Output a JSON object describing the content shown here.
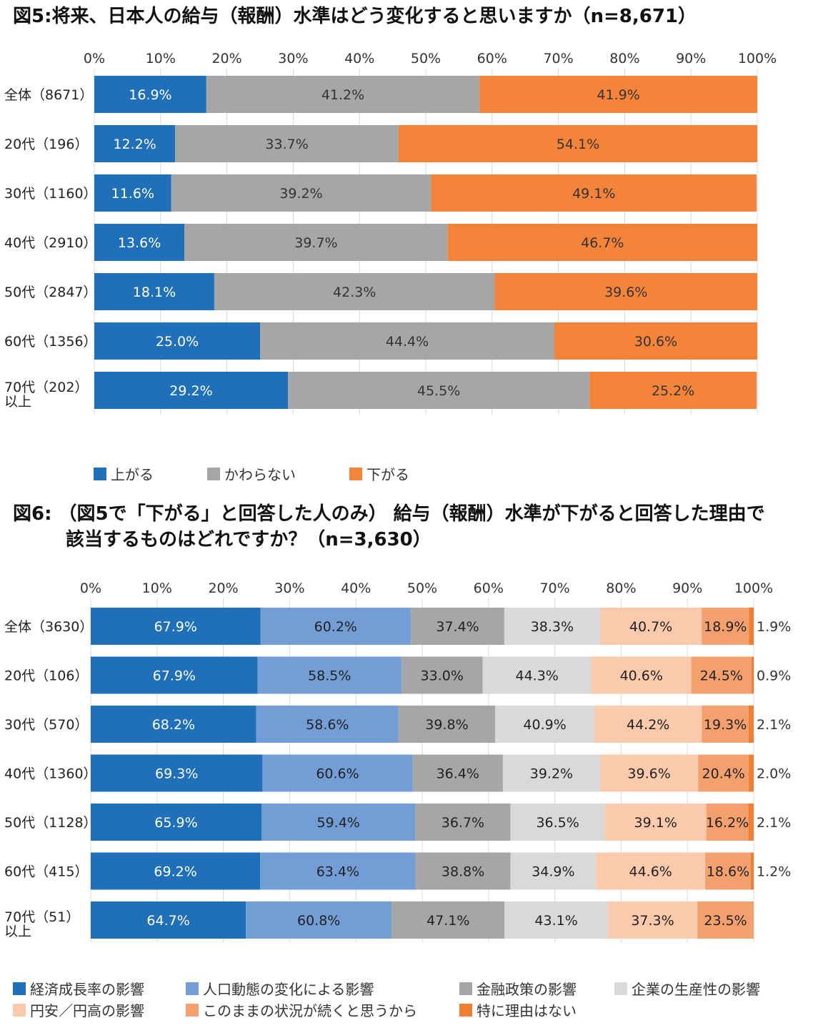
{
  "chart_data": [
    {
      "type": "bar",
      "orientation": "horizontal",
      "stacked": true,
      "title": "図5:将来、日本人の給与（報酬）水準はどう変化すると思いますか（n=8,671）",
      "xlim": [
        0,
        100
      ],
      "x_ticks": [
        "0%",
        "10%",
        "20%",
        "30%",
        "40%",
        "50%",
        "60%",
        "70%",
        "80%",
        "90%",
        "100%"
      ],
      "categories": [
        [
          "全体（8671）"
        ],
        [
          "20代（196）"
        ],
        [
          "30代（1160）"
        ],
        [
          "40代（2910）"
        ],
        [
          "50代（2847）"
        ],
        [
          "60代（1356）"
        ],
        [
          "70代（202）",
          "以上"
        ]
      ],
      "series": [
        {
          "name": "上がる",
          "color": "#1f6fb9",
          "label_color": "#ffffff",
          "values": [
            16.9,
            12.2,
            11.6,
            13.6,
            18.1,
            25.0,
            29.2
          ],
          "labels": [
            "16.9%",
            "12.2%",
            "11.6%",
            "13.6%",
            "18.1%",
            "25.0%",
            "29.2%"
          ]
        },
        {
          "name": "かわらない",
          "color": "#a6a6a6",
          "label_color": "#333333",
          "values": [
            41.2,
            33.7,
            39.2,
            39.7,
            42.3,
            44.4,
            45.5
          ],
          "labels": [
            "41.2%",
            "33.7%",
            "39.2%",
            "39.7%",
            "42.3%",
            "44.4%",
            "45.5%"
          ]
        },
        {
          "name": "下がる",
          "color": "#f5843b",
          "label_color": "#333333",
          "values": [
            41.9,
            54.1,
            49.1,
            46.7,
            39.6,
            30.6,
            25.2
          ],
          "labels": [
            "41.9%",
            "54.1%",
            "49.1%",
            "46.7%",
            "39.6%",
            "30.6%",
            "25.2%"
          ]
        }
      ]
    },
    {
      "type": "bar",
      "orientation": "horizontal",
      "stacked": true,
      "normalized": true,
      "title_lines": [
        "図6: （図5で「下がる」と回答した人のみ） 給与（報酬）水準が下がると回答した理由で",
        "該当するものはどれですか？（n=3,630）"
      ],
      "xlim": [
        0,
        100
      ],
      "x_ticks": [
        "0%",
        "10%",
        "20%",
        "30%",
        "40%",
        "50%",
        "60%",
        "70%",
        "80%",
        "90%",
        "100%"
      ],
      "categories": [
        [
          "全体（3630）"
        ],
        [
          "20代（106）"
        ],
        [
          "30代（570）"
        ],
        [
          "40代（1360）"
        ],
        [
          "50代（1128）"
        ],
        [
          "60代（415）"
        ],
        [
          "70代（51）",
          "以上"
        ]
      ],
      "series": [
        {
          "name": "経済成長率の影響",
          "color": "#1f6fb9",
          "label_color": "#ffffff",
          "values": [
            67.9,
            67.9,
            68.2,
            69.3,
            65.9,
            69.2,
            64.7
          ],
          "labels": [
            "67.9%",
            "67.9%",
            "68.2%",
            "69.3%",
            "65.9%",
            "69.2%",
            "64.7%"
          ]
        },
        {
          "name": "人口動態の変化による影響",
          "color": "#739dd5",
          "label_color": "#222222",
          "values": [
            60.2,
            58.5,
            58.6,
            60.6,
            59.4,
            63.4,
            60.8
          ],
          "labels": [
            "60.2%",
            "58.5%",
            "58.6%",
            "60.6%",
            "59.4%",
            "63.4%",
            "60.8%"
          ]
        },
        {
          "name": "金融政策の影響",
          "color": "#a6a6a6",
          "label_color": "#222222",
          "values": [
            37.4,
            33.0,
            39.8,
            36.4,
            36.7,
            38.8,
            47.1
          ],
          "labels": [
            "37.4%",
            "33.0%",
            "39.8%",
            "36.4%",
            "36.7%",
            "38.8%",
            "47.1%"
          ]
        },
        {
          "name": "企業の生産性の影響",
          "color": "#d9d9d9",
          "label_color": "#222222",
          "values": [
            38.3,
            44.3,
            40.9,
            39.2,
            36.5,
            34.9,
            43.1
          ],
          "labels": [
            "38.3%",
            "44.3%",
            "40.9%",
            "39.2%",
            "36.5%",
            "34.9%",
            "43.1%"
          ]
        },
        {
          "name": "円安／円高の影響",
          "color": "#fbc9ac",
          "label_color": "#222222",
          "values": [
            40.7,
            40.6,
            44.2,
            39.6,
            39.1,
            44.6,
            37.3
          ],
          "labels": [
            "40.7%",
            "40.6%",
            "44.2%",
            "39.6%",
            "39.1%",
            "44.6%",
            "37.3%"
          ]
        },
        {
          "name": "このままの状況が続くと思うから",
          "color": "#f4a06e",
          "label_color": "#222222",
          "values": [
            18.9,
            24.5,
            19.3,
            20.4,
            16.2,
            18.6,
            23.5
          ],
          "labels": [
            "18.9%",
            "24.5%",
            "19.3%",
            "20.4%",
            "16.2%",
            "18.6%",
            "23.5%"
          ]
        },
        {
          "name": "特に理由はない",
          "color": "#f07f33",
          "label_color": "#222222",
          "values": [
            1.9,
            0.9,
            2.1,
            2.0,
            2.1,
            1.2,
            0
          ],
          "labels": [
            "1.9%",
            "0.9%",
            "2.1%",
            "2.0%",
            "2.1%",
            "1.2%",
            ""
          ],
          "label_outside": true
        }
      ]
    }
  ],
  "titles": {
    "fig5": "図5:将来、日本人の給与（報酬）水準はどう変化すると思いますか（n=8,671）",
    "fig6_line1": "図6: （図5で「下がる」と回答した人のみ） 給与（報酬）水準が下がると回答した理由で",
    "fig6_line2": "該当するものはどれですか？（n=3,630）"
  }
}
